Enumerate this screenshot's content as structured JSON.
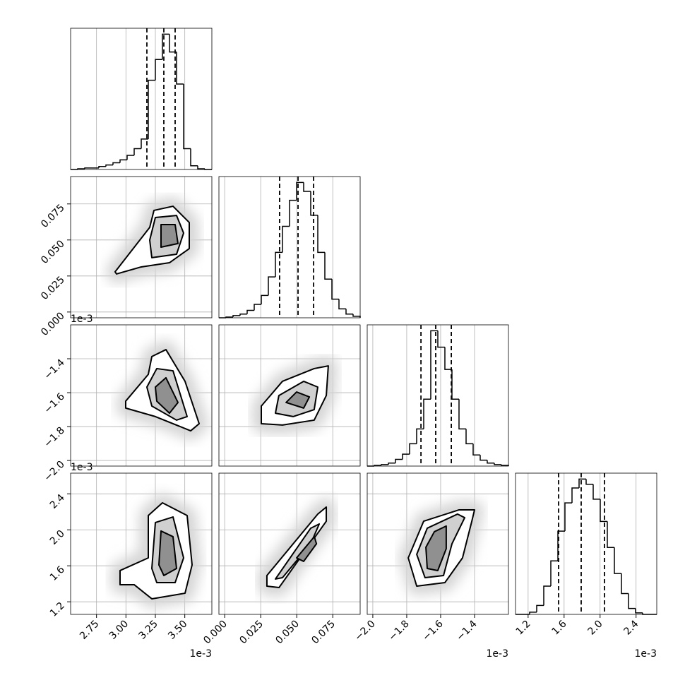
{
  "chart_data": {
    "type": "corner",
    "parameters": [
      {
        "lim": [
          2.53,
          3.73
        ],
        "ticks": [
          2.75,
          {
            "value": 3,
            "label": "3.00"
          },
          3.25,
          {
            "value": 3.5,
            "label": "3.50"
          }
        ],
        "offset_label": "1e-3"
      },
      {
        "lim": [
          -0.004,
          0.094
        ],
        "ticks": [
          {
            "value": 0,
            "label": "0.000"
          },
          0.025,
          {
            "value": 0.05,
            "label": "0.050"
          },
          0.075
        ]
      },
      {
        "lim": [
          -2.033,
          -1.2
        ],
        "ticks": [
          {
            "value": -2,
            "label": "−2.0"
          },
          {
            "value": -1.8,
            "label": "−1.8"
          },
          {
            "value": -1.6,
            "label": "−1.6"
          },
          {
            "value": -1.4,
            "label": "−1.4"
          }
        ],
        "offset_label": "1e-3"
      },
      {
        "lim": [
          1.06,
          2.63
        ],
        "ticks": [
          1.2,
          1.6,
          {
            "value": 2,
            "label": "2.0"
          },
          2.4
        ],
        "offset_label": "1e-3"
      }
    ],
    "histograms": [
      {
        "bins": [
          2.53,
          2.59,
          2.65,
          2.71,
          2.77,
          2.83,
          2.89,
          2.95,
          3.01,
          3.07,
          3.13,
          3.19,
          3.25,
          3.31,
          3.37,
          3.43,
          3.49,
          3.55,
          3.61,
          3.67,
          3.73
        ],
        "counts": [
          0,
          1,
          2,
          2,
          4,
          6,
          9,
          13,
          19,
          28,
          41,
          120,
          148,
          182,
          158,
          115,
          28,
          5,
          1,
          0
        ],
        "ylim": [
          0,
          190
        ],
        "quantiles": [
          3.178,
          3.322,
          3.418
        ]
      },
      {
        "bins": [
          -0.004,
          0.0009,
          0.0058,
          0.0107,
          0.0156,
          0.0205,
          0.0254,
          0.0303,
          0.0352,
          0.0401,
          0.045,
          0.0499,
          0.0548,
          0.0597,
          0.0646,
          0.0695,
          0.0744,
          0.0793,
          0.0842,
          0.0891,
          0.094
        ],
        "counts": [
          0,
          1,
          3,
          5,
          10,
          18,
          30,
          55,
          88,
          123,
          158,
          182,
          170,
          138,
          88,
          52,
          25,
          12,
          5,
          2
        ],
        "ylim": [
          0,
          190
        ],
        "quantiles": [
          0.0381,
          0.0509,
          0.0617
        ]
      },
      {
        "bins": [
          -2.033,
          -1.9913,
          -1.9497,
          -1.908,
          -1.8664,
          -1.8248,
          -1.7831,
          -1.7415,
          -1.6998,
          -1.6582,
          -1.6165,
          -1.5749,
          -1.5332,
          -1.4916,
          -1.4499,
          -1.4083,
          -1.3666,
          -1.325,
          -1.2833,
          -1.2417,
          -1.2
        ],
        "counts": [
          0,
          1,
          2,
          4,
          9,
          16,
          30,
          50,
          90,
          182,
          160,
          130,
          90,
          50,
          30,
          15,
          8,
          4,
          2,
          1
        ],
        "ylim": [
          0,
          190
        ],
        "quantiles": [
          -1.716,
          -1.629,
          -1.537
        ]
      },
      {
        "bins": [
          1.06,
          1.1385,
          1.217,
          1.2955,
          1.374,
          1.4525,
          1.531,
          1.6095,
          1.688,
          1.7665,
          1.845,
          1.9235,
          2.002,
          2.0805,
          2.159,
          2.2375,
          2.316,
          2.3945,
          2.473,
          2.5515,
          2.63
        ],
        "counts": [
          0,
          0,
          3,
          12,
          38,
          72,
          112,
          150,
          170,
          182,
          175,
          155,
          125,
          90,
          55,
          28,
          8,
          2,
          0,
          0
        ],
        "ylim": [
          0,
          190
        ],
        "quantiles": [
          1.539,
          1.79,
          2.049
        ]
      }
    ],
    "contours": [
      [
        [
          [
            2.908,
            0.0279
          ],
          [
            3.202,
            0.0587
          ],
          [
            3.238,
            0.0705
          ],
          [
            3.4,
            0.0734
          ],
          [
            3.538,
            0.0621
          ],
          [
            3.538,
            0.044
          ],
          [
            3.37,
            0.0342
          ],
          [
            3.13,
            0.0313
          ],
          [
            2.92,
            0.0264
          ]
        ],
        [
          [
            3.202,
            0.0499
          ],
          [
            3.25,
            0.0656
          ],
          [
            3.43,
            0.067
          ],
          [
            3.49,
            0.0548
          ],
          [
            3.43,
            0.0401
          ],
          [
            3.22,
            0.0377
          ]
        ],
        [
          [
            3.298,
            0.0607
          ],
          [
            3.418,
            0.0607
          ],
          [
            3.442,
            0.0475
          ],
          [
            3.298,
            0.045
          ]
        ]
      ],
      [
        [
          [
            2.998,
            -1.65
          ],
          [
            3.19,
            -1.492
          ],
          [
            3.22,
            -1.387
          ],
          [
            3.34,
            -1.346
          ],
          [
            3.502,
            -1.533
          ],
          [
            3.622,
            -1.783
          ],
          [
            3.55,
            -1.825
          ],
          [
            3.25,
            -1.741
          ],
          [
            2.998,
            -1.691
          ]
        ],
        [
          [
            3.178,
            -1.567
          ],
          [
            3.262,
            -1.458
          ],
          [
            3.4,
            -1.471
          ],
          [
            3.52,
            -1.741
          ],
          [
            3.43,
            -1.762
          ],
          [
            3.22,
            -1.679
          ]
        ],
        [
          [
            3.25,
            -1.567
          ],
          [
            3.34,
            -1.512
          ],
          [
            3.442,
            -1.658
          ],
          [
            3.37,
            -1.721
          ],
          [
            3.262,
            -1.65
          ]
        ]
      ],
      [
        [
          [
            0.0254,
            -1.783
          ],
          [
            0.0254,
            -1.679
          ],
          [
            0.0401,
            -1.533
          ],
          [
            0.0621,
            -1.458
          ],
          [
            0.0719,
            -1.442
          ],
          [
            0.0705,
            -1.617
          ],
          [
            0.0621,
            -1.762
          ],
          [
            0.0401,
            -1.791
          ]
        ],
        [
          [
            0.0352,
            -1.721
          ],
          [
            0.0376,
            -1.617
          ],
          [
            0.0548,
            -1.533
          ],
          [
            0.0646,
            -1.567
          ],
          [
            0.0621,
            -1.7
          ],
          [
            0.0475,
            -1.741
          ]
        ],
        [
          [
            0.0426,
            -1.658
          ],
          [
            0.0499,
            -1.596
          ],
          [
            0.0588,
            -1.625
          ],
          [
            0.0548,
            -1.691
          ]
        ]
      ],
      [
        [
          [
            2.95,
            1.39
          ],
          [
            2.95,
            1.547
          ],
          [
            3.19,
            1.688
          ],
          [
            3.19,
            2.159
          ],
          [
            3.31,
            2.3
          ],
          [
            3.52,
            2.159
          ],
          [
            3.562,
            1.61
          ],
          [
            3.502,
            1.295
          ],
          [
            3.22,
            1.233
          ],
          [
            3.07,
            1.39
          ]
        ],
        [
          [
            3.22,
            1.57
          ],
          [
            3.25,
            2.081
          ],
          [
            3.4,
            2.143
          ],
          [
            3.49,
            1.688
          ],
          [
            3.418,
            1.413
          ],
          [
            3.262,
            1.413
          ]
        ],
        [
          [
            3.28,
            1.61
          ],
          [
            3.298,
            1.987
          ],
          [
            3.4,
            1.924
          ],
          [
            3.43,
            1.57
          ],
          [
            3.322,
            1.492
          ]
        ]
      ],
      [
        [
          [
            0.0293,
            1.374
          ],
          [
            0.0293,
            1.492
          ],
          [
            0.0646,
            2.175
          ],
          [
            0.0705,
            2.253
          ],
          [
            0.0705,
            2.096
          ],
          [
            0.0377,
            1.358
          ]
        ],
        [
          [
            0.0352,
            1.453
          ],
          [
            0.0597,
            2.018
          ],
          [
            0.0656,
            2.065
          ],
          [
            0.0597,
            1.845
          ],
          [
            0.0401,
            1.468
          ]
        ],
        [
          [
            0.0499,
            1.688
          ],
          [
            0.0622,
            1.924
          ],
          [
            0.0637,
            1.845
          ],
          [
            0.0548,
            1.649
          ]
        ]
      ],
      [
        [
          [
            -1.791,
            1.688
          ],
          [
            -1.7,
            2.096
          ],
          [
            -1.491,
            2.222
          ],
          [
            -1.4,
            2.222
          ],
          [
            -1.416,
            2.096
          ],
          [
            -1.471,
            1.688
          ],
          [
            -1.575,
            1.413
          ],
          [
            -1.741,
            1.374
          ]
        ],
        [
          [
            -1.741,
            1.727
          ],
          [
            -1.679,
            2.018
          ],
          [
            -1.5,
            2.175
          ],
          [
            -1.458,
            2.135
          ],
          [
            -1.533,
            1.845
          ],
          [
            -1.583,
            1.492
          ],
          [
            -1.692,
            1.468
          ]
        ],
        [
          [
            -1.687,
            1.806
          ],
          [
            -1.637,
            1.979
          ],
          [
            -1.567,
            2.042
          ],
          [
            -1.567,
            1.79
          ],
          [
            -1.617,
            1.547
          ],
          [
            -1.679,
            1.57
          ]
        ]
      ]
    ]
  }
}
